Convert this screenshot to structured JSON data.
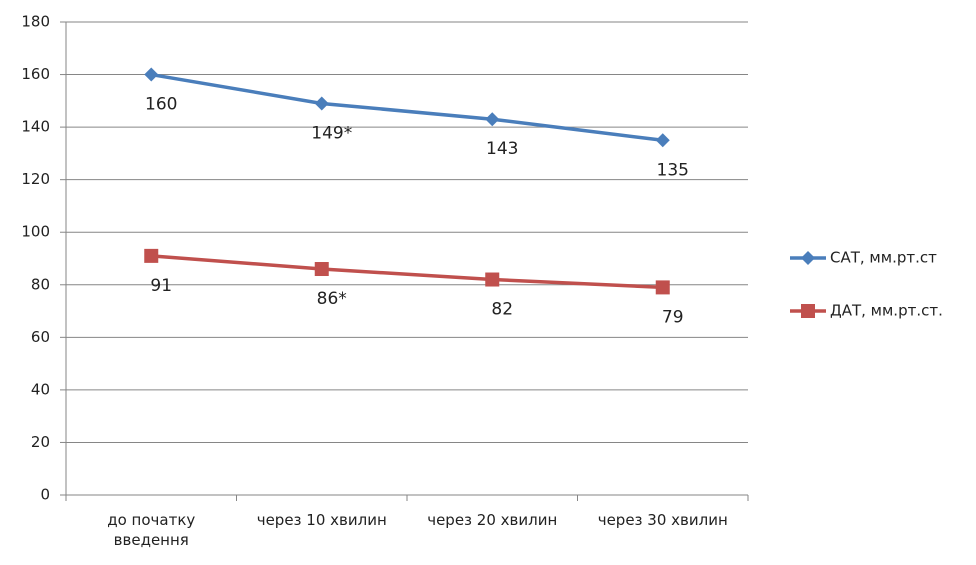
{
  "chart_data": {
    "type": "line",
    "categories": [
      "до початку введення",
      "через 10 хвилин",
      "через 20 хвилин",
      "через 30 хвилин"
    ],
    "series": [
      {
        "name": "САТ, мм.рт.ст",
        "color": "#4a7ebb",
        "marker": "diamond",
        "values": [
          160,
          149,
          143,
          135
        ],
        "value_labels": [
          "160",
          "149*",
          "143",
          "135"
        ]
      },
      {
        "name": "ДАТ, мм.рт.ст.",
        "color": "#c0504d",
        "marker": "square",
        "values": [
          91,
          86,
          82,
          79
        ],
        "value_labels": [
          "91",
          "86*",
          "82",
          "79"
        ]
      }
    ],
    "ylim": [
      0,
      180
    ],
    "yticks": [
      0,
      20,
      40,
      60,
      80,
      100,
      120,
      140,
      160,
      180
    ],
    "grid": true,
    "legend": "right"
  }
}
